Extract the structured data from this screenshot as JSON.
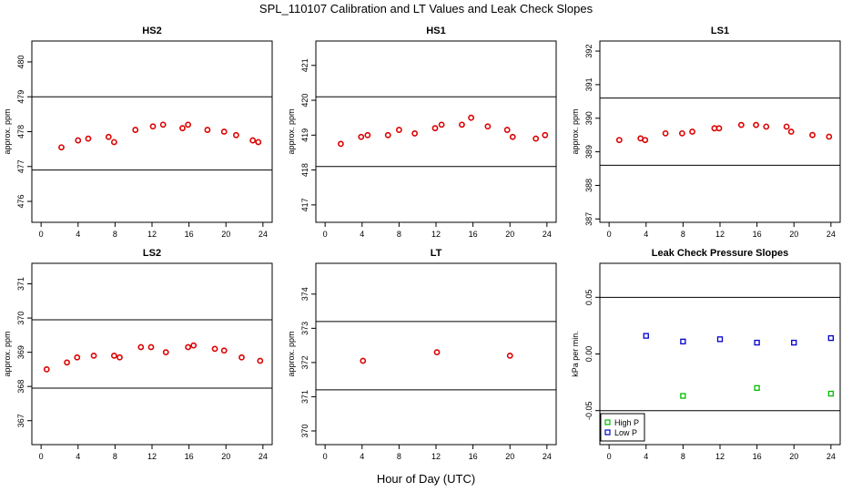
{
  "title": "SPL_110107  Calibration and LT Values and Leak Check Slopes",
  "xlabel": "Hour of Day (UTC)",
  "colors": {
    "calibration_points": "#dd0000",
    "high_p": "#00bb00",
    "low_p": "#0000cc",
    "lines": "#000000"
  },
  "chart_data": [
    {
      "type": "scatter",
      "title": "HS2",
      "ylabel": "approx. ppm",
      "xlim": [
        -1,
        25
      ],
      "ylim": [
        475.4,
        480.6
      ],
      "xticks": [
        0,
        4,
        8,
        12,
        16,
        20,
        24
      ],
      "yticks": [
        476,
        477,
        478,
        479,
        480
      ],
      "hlines": [
        479.0,
        476.9
      ],
      "series": [
        {
          "marker": "circle",
          "color": "#dd0000",
          "x": [
            2.2,
            4.0,
            5.1,
            7.3,
            7.9,
            10.2,
            12.1,
            13.2,
            15.3,
            15.9,
            18.0,
            19.8,
            21.1,
            22.9,
            23.5
          ],
          "y": [
            477.55,
            477.75,
            477.8,
            477.85,
            477.7,
            478.05,
            478.15,
            478.2,
            478.1,
            478.2,
            478.05,
            478.0,
            477.9,
            477.75,
            477.7
          ]
        }
      ]
    },
    {
      "type": "scatter",
      "title": "HS1",
      "ylabel": "approx. ppm",
      "xlim": [
        -1,
        25
      ],
      "ylim": [
        416.5,
        421.7
      ],
      "xticks": [
        0,
        4,
        8,
        12,
        16,
        20,
        24
      ],
      "yticks": [
        417,
        418,
        419,
        420,
        421
      ],
      "hlines": [
        420.1,
        418.1
      ],
      "series": [
        {
          "marker": "circle",
          "color": "#dd0000",
          "x": [
            1.7,
            3.9,
            4.6,
            6.8,
            8.0,
            9.7,
            11.9,
            12.6,
            14.8,
            15.8,
            17.6,
            19.7,
            20.3,
            22.8,
            23.8
          ],
          "y": [
            418.75,
            418.95,
            419.0,
            419.0,
            419.15,
            419.05,
            419.2,
            419.3,
            419.3,
            419.5,
            419.25,
            419.15,
            418.95,
            418.9,
            419.0
          ]
        }
      ]
    },
    {
      "type": "scatter",
      "title": "LS1",
      "ylabel": "approx. ppm",
      "xlim": [
        -1,
        25
      ],
      "ylim": [
        386.9,
        392.3
      ],
      "xticks": [
        0,
        4,
        8,
        12,
        16,
        20,
        24
      ],
      "yticks": [
        387,
        388,
        389,
        390,
        391,
        392
      ],
      "hlines": [
        390.6,
        388.6
      ],
      "series": [
        {
          "marker": "circle",
          "color": "#dd0000",
          "x": [
            1.1,
            3.4,
            3.9,
            6.1,
            7.9,
            9.0,
            11.4,
            11.9,
            14.3,
            15.9,
            17.0,
            19.2,
            19.7,
            22.0,
            23.8
          ],
          "y": [
            389.35,
            389.4,
            389.35,
            389.55,
            389.55,
            389.6,
            389.7,
            389.7,
            389.8,
            389.8,
            389.75,
            389.75,
            389.6,
            389.5,
            389.45
          ]
        }
      ]
    },
    {
      "type": "scatter",
      "title": "LS2",
      "ylabel": "approx. ppm",
      "xlim": [
        -1,
        25
      ],
      "ylim": [
        366.3,
        371.6
      ],
      "xticks": [
        0,
        4,
        8,
        12,
        16,
        20,
        24
      ],
      "yticks": [
        367,
        368,
        369,
        370,
        371
      ],
      "hlines": [
        369.95,
        367.95
      ],
      "series": [
        {
          "marker": "circle",
          "color": "#dd0000",
          "x": [
            0.6,
            2.8,
            3.9,
            5.7,
            7.9,
            8.5,
            10.8,
            11.9,
            13.5,
            15.9,
            16.5,
            18.8,
            19.8,
            21.7,
            23.7
          ],
          "y": [
            368.5,
            368.7,
            368.85,
            368.9,
            368.9,
            368.85,
            369.15,
            369.15,
            369.0,
            369.15,
            369.2,
            369.1,
            369.05,
            368.85,
            368.75
          ]
        }
      ]
    },
    {
      "type": "scatter",
      "title": "LT",
      "ylabel": "approx. ppm",
      "xlim": [
        -1,
        25
      ],
      "ylim": [
        369.6,
        374.9
      ],
      "xticks": [
        0,
        4,
        8,
        12,
        16,
        20,
        24
      ],
      "yticks": [
        370,
        371,
        372,
        373,
        374
      ],
      "hlines": [
        373.2,
        371.2
      ],
      "series": [
        {
          "marker": "circle",
          "color": "#dd0000",
          "x": [
            4.1,
            12.1,
            20.0
          ],
          "y": [
            372.05,
            372.3,
            372.2
          ]
        }
      ]
    },
    {
      "type": "scatter",
      "title": "Leak Check Pressure Slopes",
      "ylabel": "kPa per min.",
      "xlim": [
        -1,
        25
      ],
      "ylim": [
        -0.08,
        0.08
      ],
      "xticks": [
        0,
        4,
        8,
        12,
        16,
        20,
        24
      ],
      "yticks": [
        -0.05,
        0.0,
        0.05
      ],
      "ytick_labels": [
        "-0.05",
        "0.00",
        "0.05"
      ],
      "hlines": [
        0.05,
        -0.05
      ],
      "legend": {
        "position": "bottom-left",
        "entries": [
          "High P",
          "Low P"
        ]
      },
      "series": [
        {
          "name": "High P",
          "marker": "square",
          "color": "#00bb00",
          "x": [
            8,
            16,
            24
          ],
          "y": [
            -0.037,
            -0.03,
            -0.035
          ]
        },
        {
          "name": "Low P",
          "marker": "square",
          "color": "#0000cc",
          "x": [
            4,
            8,
            12,
            16,
            20,
            24
          ],
          "y": [
            0.016,
            0.011,
            0.013,
            0.01,
            0.01,
            0.014
          ]
        }
      ]
    }
  ]
}
